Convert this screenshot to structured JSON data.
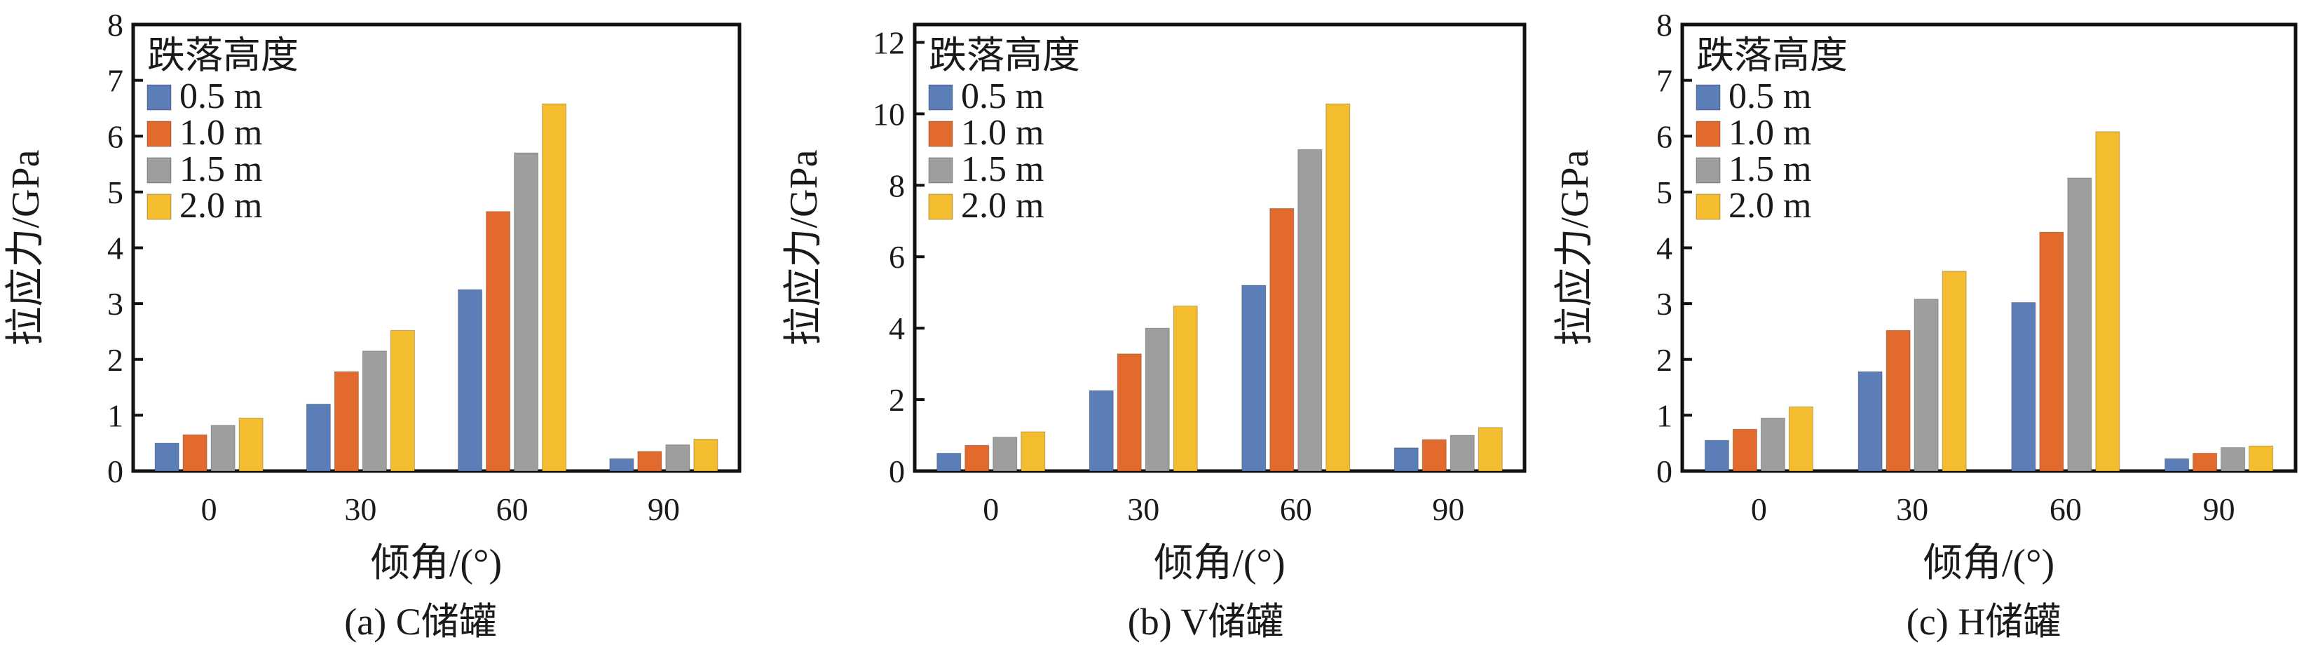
{
  "chart_data": [
    {
      "type": "bar",
      "caption": "(a) C储罐",
      "xlabel": "倾角/(°)",
      "ylabel": "拉应力/GPa",
      "categories": [
        "0",
        "30",
        "60",
        "90"
      ],
      "ylim": [
        0,
        8
      ],
      "yticks": [
        "0",
        "1",
        "2",
        "3",
        "4",
        "5",
        "6",
        "7",
        "8"
      ],
      "legend_title": "跌落高度",
      "legend_position": "top-left",
      "series": [
        {
          "name": "0.5 m",
          "color": "#5b7db8",
          "values": [
            0.5,
            1.2,
            3.25,
            0.22
          ]
        },
        {
          "name": "1.0 m",
          "color": "#e26a2c",
          "values": [
            0.65,
            1.78,
            4.65,
            0.35
          ]
        },
        {
          "name": "1.5 m",
          "color": "#9e9e9e",
          "values": [
            0.82,
            2.15,
            5.7,
            0.47
          ]
        },
        {
          "name": "2.0 m",
          "color": "#f3bd2f",
          "values": [
            0.95,
            2.52,
            6.58,
            0.57
          ]
        }
      ]
    },
    {
      "type": "bar",
      "caption": "(b) V储罐",
      "xlabel": "倾角/(°)",
      "ylabel": "拉应力/GPa",
      "categories": [
        "0",
        "30",
        "60",
        "90"
      ],
      "ylim": [
        0,
        12.5
      ],
      "yticks": [
        "0",
        "2",
        "4",
        "6",
        "8",
        "10",
        "12"
      ],
      "legend_title": "跌落高度",
      "legend_position": "top-left",
      "series": [
        {
          "name": "0.5 m",
          "color": "#5b7db8",
          "values": [
            0.5,
            2.25,
            5.2,
            0.65
          ]
        },
        {
          "name": "1.0 m",
          "color": "#e26a2c",
          "values": [
            0.72,
            3.28,
            7.35,
            0.88
          ]
        },
        {
          "name": "1.5 m",
          "color": "#9e9e9e",
          "values": [
            0.95,
            4.0,
            9.0,
            1.0
          ]
        },
        {
          "name": "2.0 m",
          "color": "#f3bd2f",
          "values": [
            1.1,
            4.62,
            10.28,
            1.22
          ]
        }
      ]
    },
    {
      "type": "bar",
      "caption": "(c) H储罐",
      "xlabel": "倾角/(°)",
      "ylabel": "拉应力/GPa",
      "categories": [
        "0",
        "30",
        "60",
        "90"
      ],
      "ylim": [
        0,
        8
      ],
      "yticks": [
        "0",
        "1",
        "2",
        "3",
        "4",
        "5",
        "6",
        "7",
        "8"
      ],
      "legend_title": "跌落高度",
      "legend_position": "top-left",
      "series": [
        {
          "name": "0.5 m",
          "color": "#5b7db8",
          "values": [
            0.55,
            1.78,
            3.02,
            0.22
          ]
        },
        {
          "name": "1.0 m",
          "color": "#e26a2c",
          "values": [
            0.75,
            2.52,
            4.28,
            0.32
          ]
        },
        {
          "name": "1.5 m",
          "color": "#9e9e9e",
          "values": [
            0.95,
            3.08,
            5.25,
            0.42
          ]
        },
        {
          "name": "2.0 m",
          "color": "#f3bd2f",
          "values": [
            1.15,
            3.58,
            6.08,
            0.45
          ]
        }
      ]
    }
  ]
}
